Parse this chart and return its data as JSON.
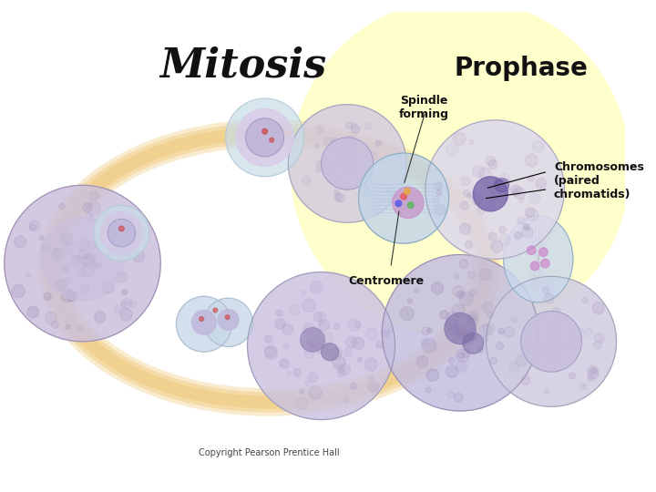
{
  "title": "Mitosis",
  "title_fontsize": 32,
  "title_color": "#111111",
  "prophase_label": "Prophase",
  "prophase_fontsize": 20,
  "prophase_weight": "bold",
  "spindle_label": "Spindle\nforming",
  "spindle_fontsize": 9,
  "spindle_weight": "bold",
  "chromosomes_label": "Chromosomes\n(paired\nchromatids)",
  "chromosomes_fontsize": 9,
  "chromosomes_weight": "bold",
  "centromere_label": "Centromere",
  "centromere_fontsize": 9,
  "centromere_weight": "bold",
  "copyright_label": "Copyright Pearson Prentice Hall",
  "copyright_fontsize": 7,
  "background_color": "#ffffff",
  "yellow_color": "#ffffcc",
  "arrow_color": "#f0c878"
}
